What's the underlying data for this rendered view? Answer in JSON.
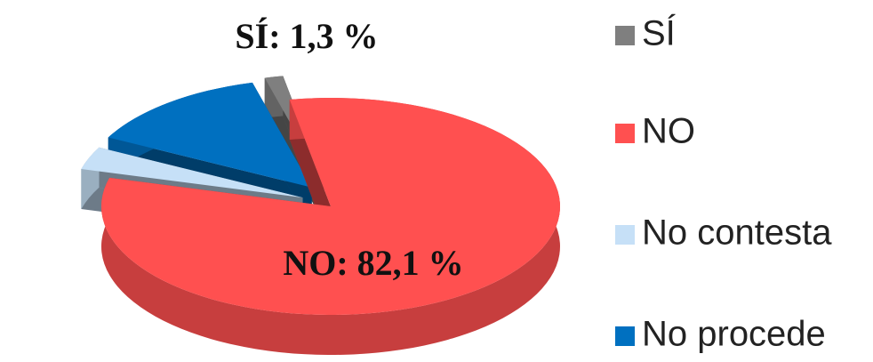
{
  "chart_data": {
    "type": "pie",
    "categories": [
      "SÍ",
      "NO",
      "No contesta",
      "No procede"
    ],
    "values": [
      1.3,
      82.1,
      3.4,
      13.2
    ],
    "value_labels": [
      "SÍ:  1,3 %",
      "NO:  82,1 %",
      null,
      null
    ],
    "colors": [
      "#7f7f7f",
      "#ff5050",
      "#c6e0f7",
      "#0070c0"
    ],
    "legend": "right"
  }
}
